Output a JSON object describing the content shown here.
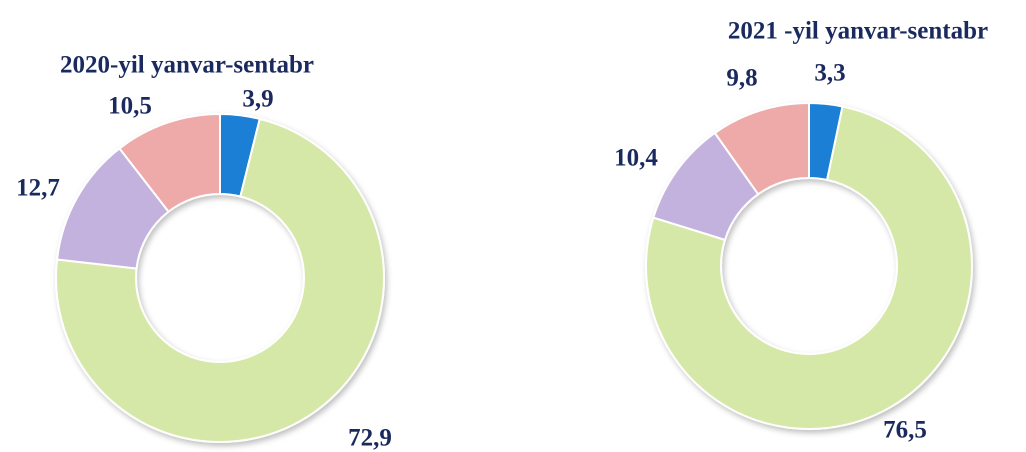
{
  "chart_data": [
    {
      "type": "donut",
      "title": "2020-yil yanvar-sentabr",
      "values": [
        3.9,
        72.9,
        12.7,
        10.5
      ],
      "value_labels": [
        "3,9",
        "72,9",
        "12,7",
        "10,5"
      ],
      "colors": [
        "#1f7fd6",
        "#d6e8a8",
        "#c4b2de",
        "#eea9a9"
      ]
    },
    {
      "type": "donut",
      "title": "2021 -yil yanvar-sentabr",
      "values": [
        3.3,
        76.5,
        10.4,
        9.8
      ],
      "value_labels": [
        "3,3",
        "76,5",
        "10,4",
        "9,8"
      ],
      "colors": [
        "#1f7fd6",
        "#d6e8a8",
        "#c4b2de",
        "#eea9a9"
      ]
    }
  ]
}
